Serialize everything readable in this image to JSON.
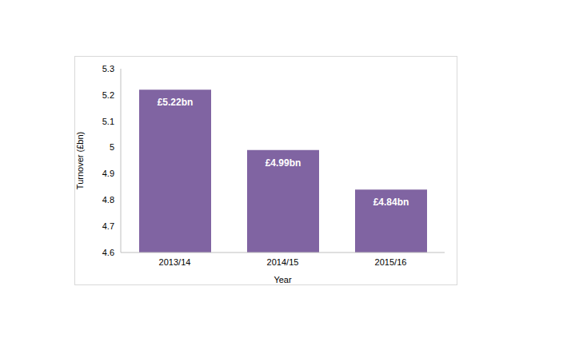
{
  "chart_data": {
    "type": "bar",
    "categories": [
      "2013/14",
      "2014/15",
      "2015/16"
    ],
    "values": [
      5.22,
      4.99,
      4.84
    ],
    "value_labels": [
      "£5.22bn",
      "£4.99bn",
      "£4.84bn"
    ],
    "color": "#8064a2",
    "ylim": [
      4.6,
      5.3
    ],
    "yticks": [
      4.6,
      4.7,
      4.8,
      4.9,
      5,
      5.1,
      5.2,
      5.3
    ],
    "x_label": "Year",
    "y_label": "Turnover (£bn)",
    "grid": false,
    "data_labels": true
  }
}
